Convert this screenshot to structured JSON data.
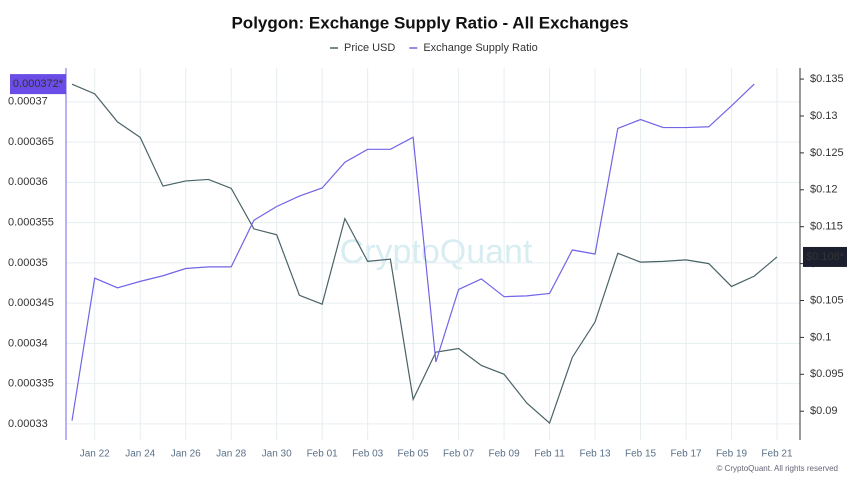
{
  "chart_data": {
    "type": "line",
    "title": "Polygon: Exchange Supply Ratio - All Exchanges",
    "categories": [
      null,
      "Jan 22",
      null,
      "Jan 24",
      null,
      "Jan 26",
      null,
      "Jan 28",
      null,
      "Jan 30",
      null,
      "Feb 01",
      null,
      "Feb 03",
      null,
      "Feb 05",
      null,
      "Feb 07",
      null,
      "Feb 09",
      null,
      "Feb 11",
      null,
      "Feb 13",
      null,
      "Feb 15",
      null,
      "Feb 17",
      null,
      "Feb 19",
      null,
      "Feb 21"
    ],
    "series": [
      {
        "name": "Price USD",
        "color": "#4a6266",
        "axis": "y2",
        "values": [
          0.1343,
          0.133,
          0.1292,
          0.1271,
          0.1205,
          0.1212,
          0.1214,
          0.1202,
          0.1147,
          0.1139,
          0.1057,
          0.1045,
          0.1161,
          0.1103,
          0.1106,
          0.0916,
          0.098,
          0.0985,
          0.0962,
          0.095,
          0.0911,
          0.0884,
          0.0973,
          0.1021,
          0.1114,
          0.1102,
          0.1103,
          0.1105,
          0.11,
          0.1069,
          0.1083,
          0.1109
        ]
      },
      {
        "name": "Exchange Supply Ratio",
        "color": "#7264e6",
        "values": [
          0.0003304,
          0.0003481,
          0.0003469,
          0.0003477,
          0.0003484,
          0.0003493,
          0.0003495,
          0.0003495,
          0.0003553,
          0.000357,
          0.0003583,
          0.0003593,
          0.0003625,
          0.0003641,
          0.0003641,
          0.0003656,
          0.0003377,
          0.0003467,
          0.000348,
          0.0003458,
          0.0003459,
          0.0003462,
          0.0003516,
          0.0003511,
          0.0003667,
          0.0003678,
          0.0003668,
          0.0003668,
          0.0003669,
          0.0003695,
          0.0003722,
          null
        ]
      }
    ],
    "ylim": [
      0.000328,
      0.0003742
    ],
    "yticks": [
      0.00033,
      0.000335,
      0.00034,
      0.000345,
      0.00035,
      0.000355,
      0.00036,
      0.000365,
      0.00037
    ],
    "y2lim": [
      0.0861,
      0.1365
    ],
    "y2ticks": [
      {
        "value": 0.09,
        "label": "$0.09"
      },
      {
        "value": 0.095,
        "label": "$0.095"
      },
      {
        "value": 0.1,
        "label": "$0.1"
      },
      {
        "value": 0.105,
        "label": "$0.105"
      },
      {
        "value": 0.11,
        "label": "$0.11"
      },
      {
        "value": 0.115,
        "label": "$0.115"
      },
      {
        "value": 0.12,
        "label": "$0.12"
      },
      {
        "value": 0.125,
        "label": "$0.125"
      },
      {
        "value": 0.13,
        "label": "$0.13"
      },
      {
        "value": 0.135,
        "label": "$0.135"
      }
    ],
    "annotations": [
      "0.000372*",
      "$0.108*"
    ],
    "grid": true,
    "legend": "top",
    "watermark": "CryptoQuant",
    "copyright": "© CryptoQuant. All rights reserved"
  }
}
